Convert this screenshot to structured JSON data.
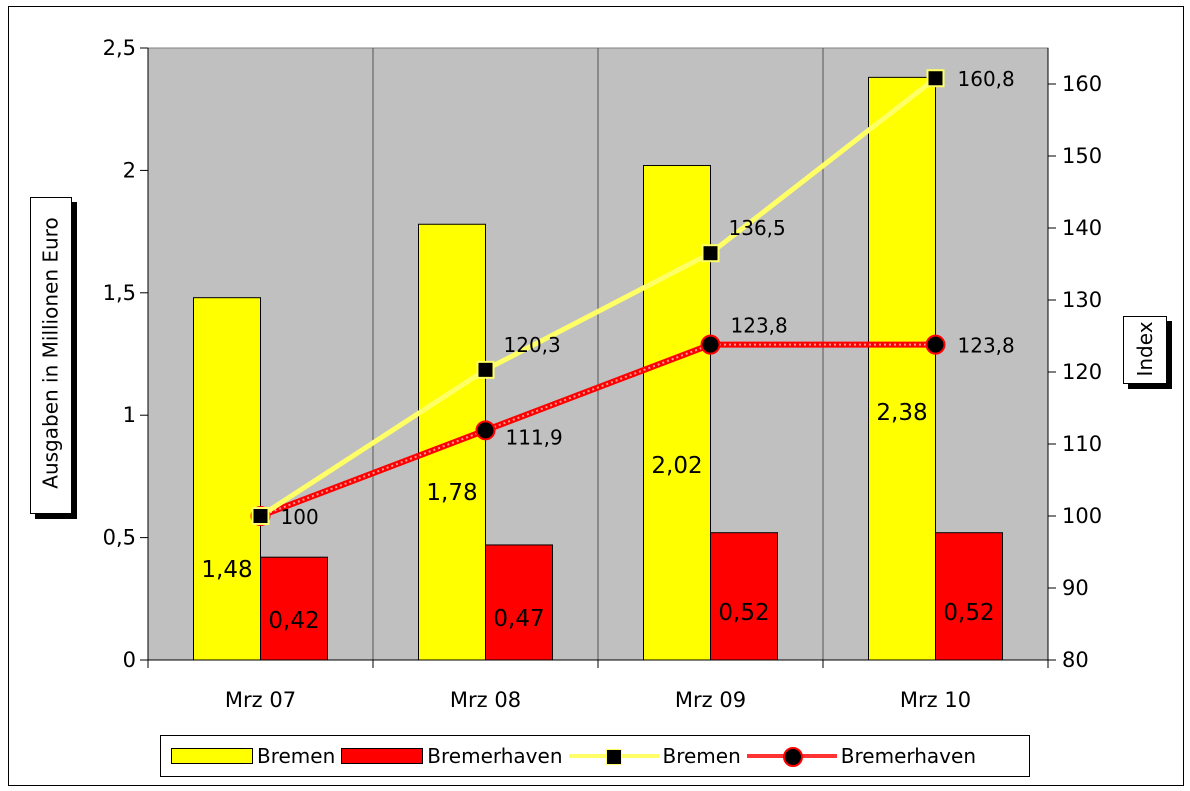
{
  "chart_data": {
    "type": "bar",
    "categories": [
      "Mrz 07",
      "Mrz 08",
      "Mrz 09",
      "Mrz 10"
    ],
    "bar_series": [
      {
        "name": "Bremen",
        "values": [
          1.48,
          1.78,
          2.02,
          2.38
        ],
        "labels": [
          "1,48",
          "1,78",
          "2,02",
          "2,38"
        ],
        "color": "#FFFF00"
      },
      {
        "name": "Bremerhaven",
        "values": [
          0.42,
          0.47,
          0.52,
          0.52
        ],
        "labels": [
          "0,42",
          "0,47",
          "0,52",
          "0,52"
        ],
        "color": "#FF0000"
      }
    ],
    "line_series": [
      {
        "name": "Bremen",
        "values": [
          100,
          120.3,
          136.5,
          160.8
        ],
        "labels": [
          "100",
          "120,3",
          "136,5",
          "160,8"
        ],
        "color": "#FFFF66",
        "marker": "square"
      },
      {
        "name": "Bremerhaven",
        "values": [
          100,
          111.9,
          123.8,
          123.8
        ],
        "labels": [
          "",
          "111,9",
          "123,8",
          "123,8"
        ],
        "color": "#FF3333",
        "marker": "circle"
      }
    ],
    "ylabel": "Ausgaben in Millionen Euro",
    "y2label": "Index",
    "ylim": [
      0,
      2.5
    ],
    "y2lim": [
      80,
      165
    ],
    "yticks": [
      "0",
      "0,5",
      "1",
      "1,5",
      "2",
      "2,5"
    ],
    "y2ticks": [
      "80",
      "90",
      "100",
      "110",
      "120",
      "130",
      "140",
      "150",
      "160"
    ],
    "plot_background": "#C0C0C0",
    "grid": "vertical",
    "legend_position": "bottom"
  },
  "legend": {
    "items": [
      "Bremen",
      "Bremerhaven",
      "Bremen",
      "Bremerhaven"
    ]
  }
}
